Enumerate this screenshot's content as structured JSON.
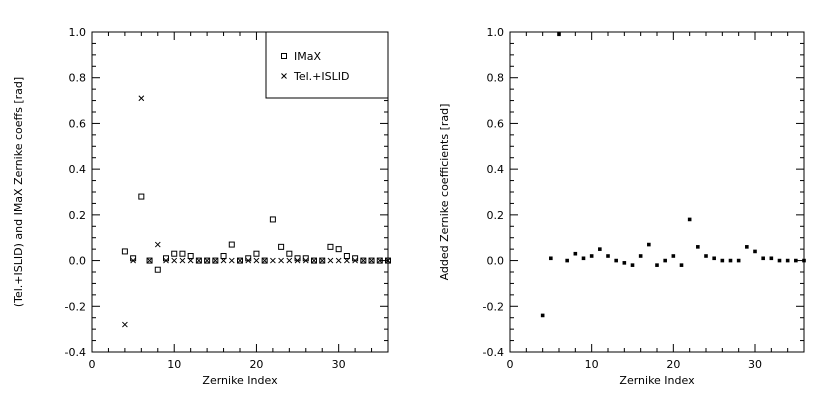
{
  "chart_data": [
    {
      "type": "scatter",
      "title": "",
      "xlabel": "Zernike Index",
      "ylabel": "(Tel.+ISLID) and IMaX Zernike coeffs [rad]",
      "xlim": [
        0,
        36
      ],
      "ylim": [
        -0.4,
        1.0
      ],
      "xticks": [
        "0",
        "10",
        "20",
        "30"
      ],
      "yticks": [
        "-0.4",
        "-0.2",
        "0.0",
        "0.2",
        "0.4",
        "0.6",
        "0.8",
        "1.0"
      ],
      "legend_position": "top-right",
      "series": [
        {
          "name": "IMaX",
          "marker": "square",
          "x": [
            4,
            5,
            6,
            7,
            8,
            9,
            10,
            11,
            12,
            13,
            14,
            15,
            16,
            17,
            18,
            19,
            20,
            21,
            22,
            23,
            24,
            25,
            26,
            27,
            28,
            29,
            30,
            31,
            32,
            33,
            34,
            35,
            36
          ],
          "y": [
            0.04,
            0.01,
            0.28,
            0.0,
            -0.04,
            0.01,
            0.03,
            0.03,
            0.02,
            0.0,
            0.0,
            0.0,
            0.02,
            0.07,
            0.0,
            0.01,
            0.03,
            0.0,
            0.18,
            0.06,
            0.03,
            0.01,
            0.01,
            0.0,
            0.0,
            0.06,
            0.05,
            0.02,
            0.01,
            0.0,
            0.0,
            0.0,
            0.0
          ]
        },
        {
          "name": "Tel.+ISLID",
          "marker": "cross",
          "x": [
            4,
            5,
            6,
            7,
            8,
            9,
            10,
            11,
            12,
            13,
            14,
            15,
            16,
            17,
            18,
            19,
            20,
            21,
            22,
            23,
            24,
            25,
            26,
            27,
            28,
            29,
            30,
            31,
            32,
            33,
            34,
            35,
            36
          ],
          "y": [
            -0.28,
            0.0,
            0.71,
            0.0,
            0.07,
            0.0,
            0.0,
            0.0,
            0.0,
            0.0,
            0.0,
            0.0,
            0.0,
            0.0,
            0.0,
            0.0,
            0.0,
            0.0,
            0.0,
            0.0,
            0.0,
            0.0,
            0.0,
            0.0,
            0.0,
            0.0,
            0.0,
            0.0,
            0.0,
            0.0,
            0.0,
            0.0,
            0.0
          ]
        }
      ]
    },
    {
      "type": "scatter",
      "title": "",
      "xlabel": "Zernike Index",
      "ylabel": "Added Zernike coefficients [rad]",
      "xlim": [
        0,
        36
      ],
      "ylim": [
        -0.4,
        1.0
      ],
      "xticks": [
        "0",
        "10",
        "20",
        "30"
      ],
      "yticks": [
        "-0.4",
        "-0.2",
        "0.0",
        "0.2",
        "0.4",
        "0.6",
        "0.8",
        "1.0"
      ],
      "series": [
        {
          "name": "",
          "marker": "dot",
          "x": [
            4,
            5,
            6,
            7,
            8,
            9,
            10,
            11,
            12,
            13,
            14,
            15,
            16,
            17,
            18,
            19,
            20,
            21,
            22,
            23,
            24,
            25,
            26,
            27,
            28,
            29,
            30,
            31,
            32,
            33,
            34,
            35,
            36
          ],
          "y": [
            -0.24,
            0.01,
            0.99,
            0.0,
            0.03,
            0.01,
            0.02,
            0.05,
            0.02,
            0.0,
            -0.01,
            -0.02,
            0.02,
            0.07,
            -0.02,
            0.0,
            0.02,
            -0.02,
            0.18,
            0.06,
            0.02,
            0.01,
            0.0,
            0.0,
            0.0,
            0.06,
            0.04,
            0.01,
            0.01,
            0.0,
            0.0,
            0.0,
            0.0
          ]
        }
      ]
    }
  ]
}
